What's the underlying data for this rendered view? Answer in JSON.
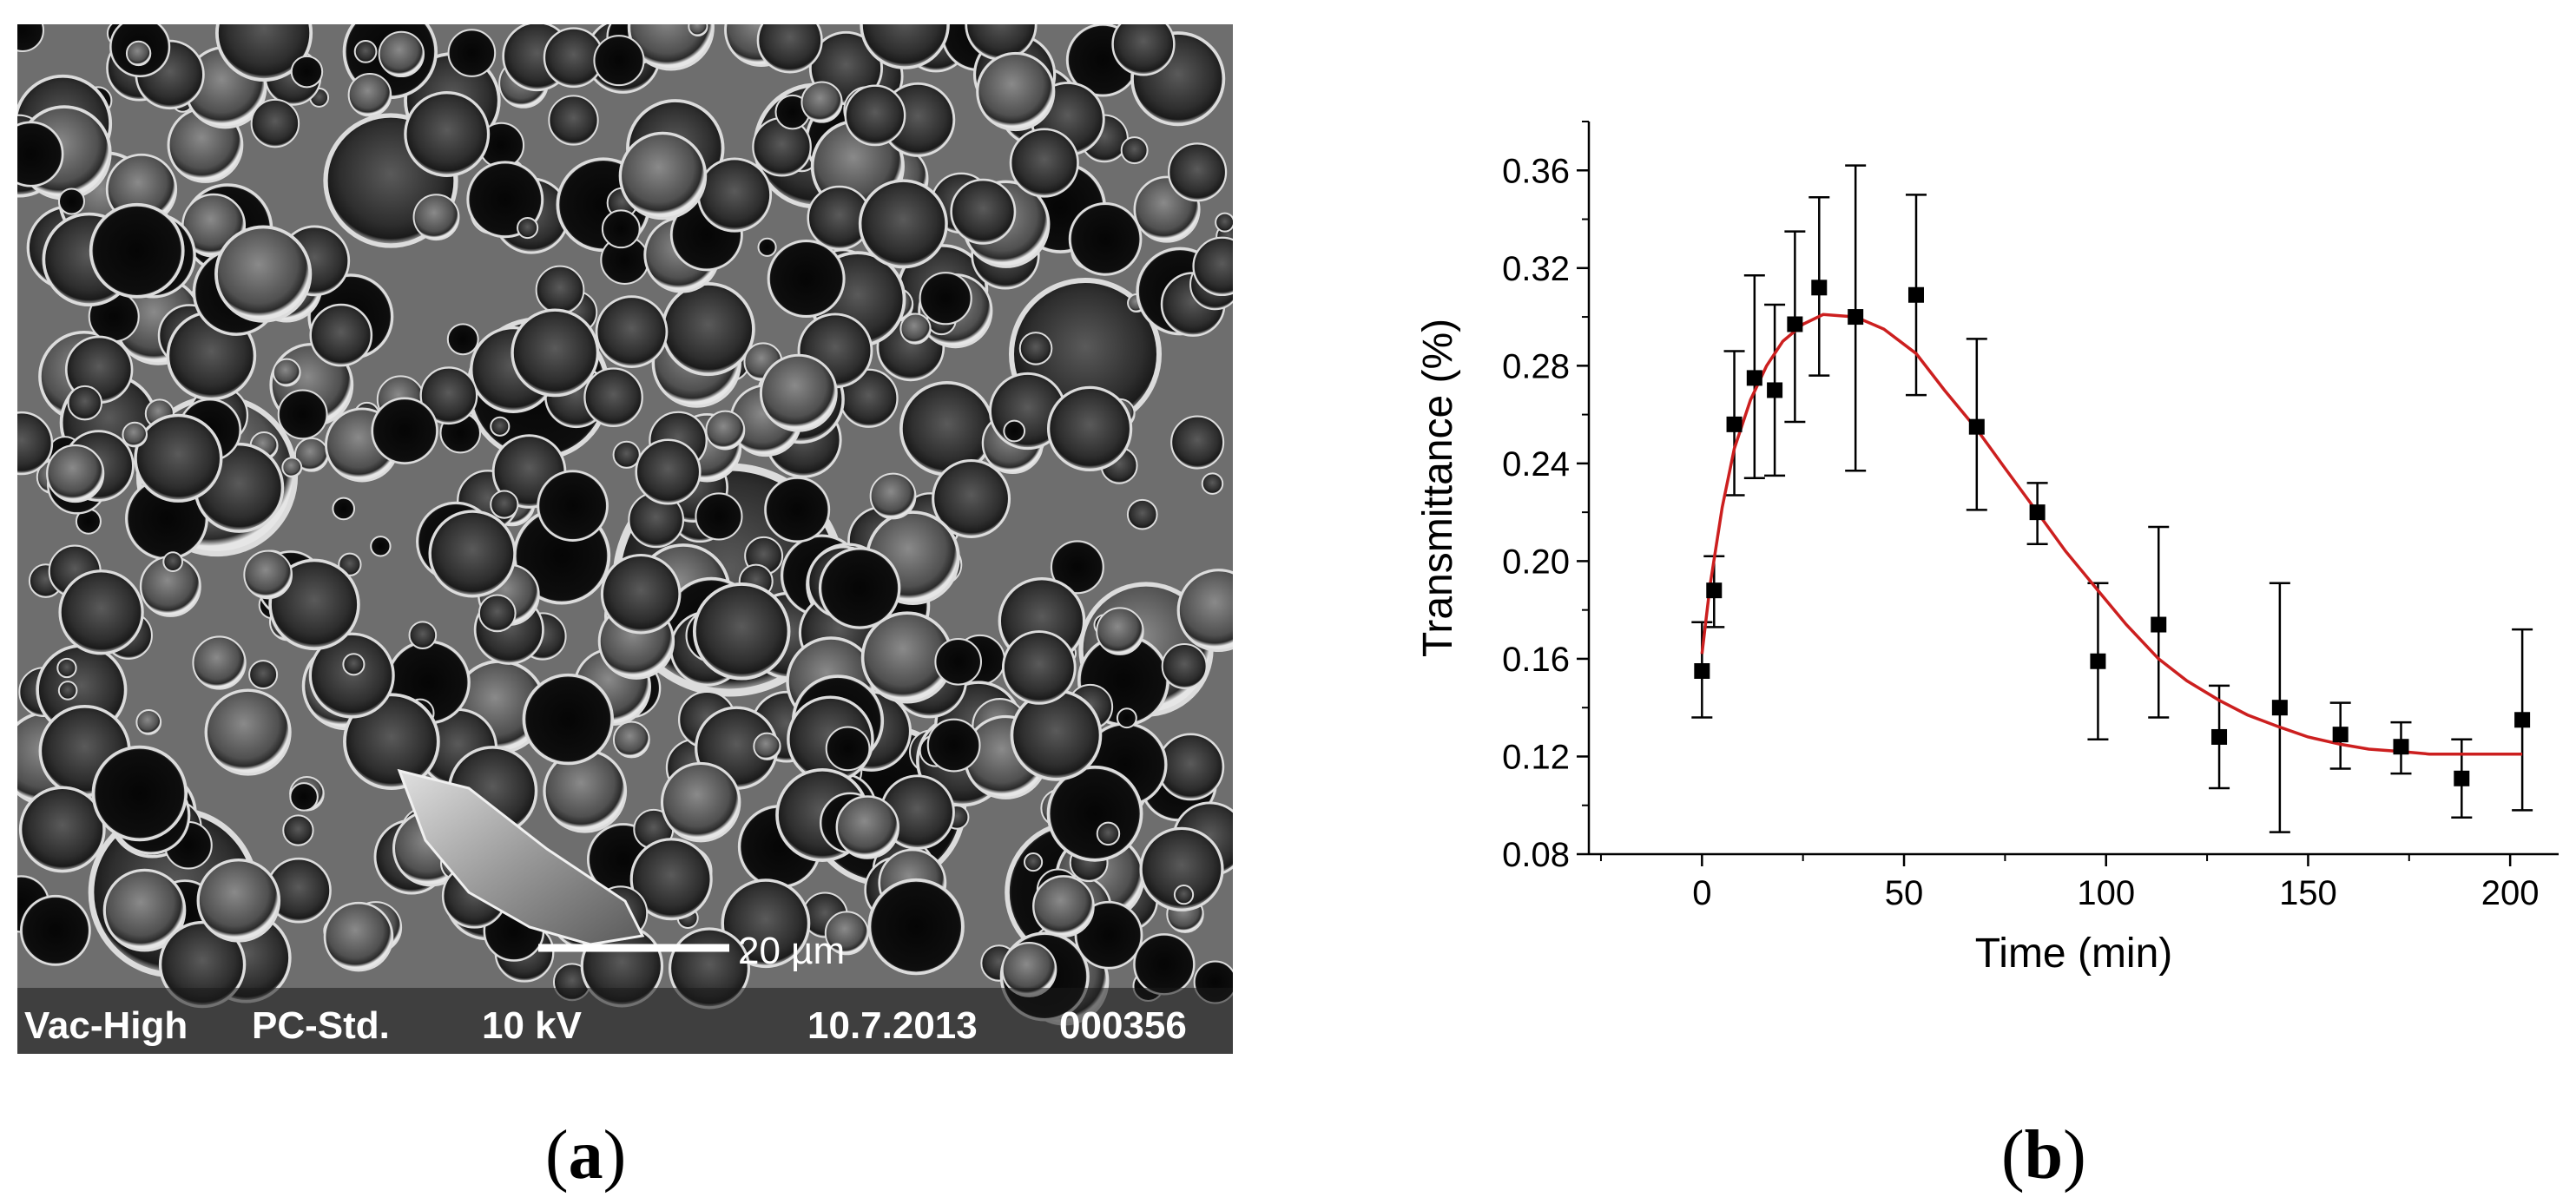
{
  "figure": {
    "panel_a_label": "a",
    "panel_b_label": "b"
  },
  "sem_image": {
    "scale_bar_label": "20 µm",
    "info_bar": {
      "vacuum": "Vac-High",
      "mode": "PC-Std.",
      "voltage": "10 kV",
      "date": "10.7.2013",
      "image_number": "000356"
    }
  },
  "chart_data": {
    "type": "scatter",
    "xlabel": "Time (min)",
    "ylabel": "Transmittance (%)",
    "xlim": [
      -28,
      212
    ],
    "ylim": [
      0.08,
      0.38
    ],
    "x_ticks": [
      0,
      50,
      100,
      150,
      200
    ],
    "y_ticks": [
      0.08,
      0.12,
      0.16,
      0.2,
      0.24,
      0.28,
      0.32,
      0.36
    ],
    "x_tick_labels": [
      "0",
      "50",
      "100",
      "150",
      "200"
    ],
    "y_tick_labels": [
      "0.08",
      "0.12",
      "0.16",
      "0.20",
      "0.24",
      "0.28",
      "0.32",
      "0.36"
    ],
    "grid": false,
    "series": [
      {
        "marker": "square",
        "color": "#000000",
        "points": [
          {
            "x": 0,
            "y": 0.155,
            "err_low": 0.136,
            "err_high": 0.175
          },
          {
            "x": 3,
            "y": 0.188,
            "err_low": 0.173,
            "err_high": 0.202
          },
          {
            "x": 8,
            "y": 0.256,
            "err_low": 0.227,
            "err_high": 0.286
          },
          {
            "x": 13,
            "y": 0.275,
            "err_low": 0.234,
            "err_high": 0.317
          },
          {
            "x": 18,
            "y": 0.27,
            "err_low": 0.235,
            "err_high": 0.305
          },
          {
            "x": 23,
            "y": 0.297,
            "err_low": 0.257,
            "err_high": 0.335
          },
          {
            "x": 29,
            "y": 0.312,
            "err_low": 0.276,
            "err_high": 0.349
          },
          {
            "x": 38,
            "y": 0.3,
            "err_low": 0.237,
            "err_high": 0.362
          },
          {
            "x": 53,
            "y": 0.309,
            "err_low": 0.268,
            "err_high": 0.35
          },
          {
            "x": 68,
            "y": 0.255,
            "err_low": 0.221,
            "err_high": 0.291
          },
          {
            "x": 83,
            "y": 0.22,
            "err_low": 0.207,
            "err_high": 0.232
          },
          {
            "x": 98,
            "y": 0.159,
            "err_low": 0.127,
            "err_high": 0.191
          },
          {
            "x": 113,
            "y": 0.174,
            "err_low": 0.136,
            "err_high": 0.214
          },
          {
            "x": 128,
            "y": 0.128,
            "err_low": 0.107,
            "err_high": 0.149
          },
          {
            "x": 143,
            "y": 0.14,
            "err_low": 0.089,
            "err_high": 0.191
          },
          {
            "x": 158,
            "y": 0.129,
            "err_low": 0.115,
            "err_high": 0.142
          },
          {
            "x": 173,
            "y": 0.124,
            "err_low": 0.113,
            "err_high": 0.134
          },
          {
            "x": 188,
            "y": 0.111,
            "err_low": 0.095,
            "err_high": 0.127
          },
          {
            "x": 203,
            "y": 0.135,
            "err_low": 0.098,
            "err_high": 0.172
          }
        ]
      }
    ],
    "fit_curve": {
      "color": "#cc1f1f",
      "points": [
        {
          "x": 0,
          "y": 0.162
        },
        {
          "x": 2,
          "y": 0.19
        },
        {
          "x": 5,
          "y": 0.222
        },
        {
          "x": 8,
          "y": 0.246
        },
        {
          "x": 12,
          "y": 0.266
        },
        {
          "x": 16,
          "y": 0.28
        },
        {
          "x": 20,
          "y": 0.29
        },
        {
          "x": 25,
          "y": 0.297
        },
        {
          "x": 30,
          "y": 0.301
        },
        {
          "x": 38,
          "y": 0.3
        },
        {
          "x": 45,
          "y": 0.295
        },
        {
          "x": 53,
          "y": 0.285
        },
        {
          "x": 60,
          "y": 0.27
        },
        {
          "x": 68,
          "y": 0.254
        },
        {
          "x": 75,
          "y": 0.238
        },
        {
          "x": 83,
          "y": 0.22
        },
        {
          "x": 90,
          "y": 0.204
        },
        {
          "x": 98,
          "y": 0.188
        },
        {
          "x": 105,
          "y": 0.174
        },
        {
          "x": 113,
          "y": 0.16
        },
        {
          "x": 120,
          "y": 0.151
        },
        {
          "x": 128,
          "y": 0.143
        },
        {
          "x": 135,
          "y": 0.137
        },
        {
          "x": 143,
          "y": 0.132
        },
        {
          "x": 150,
          "y": 0.128
        },
        {
          "x": 158,
          "y": 0.125
        },
        {
          "x": 165,
          "y": 0.123
        },
        {
          "x": 173,
          "y": 0.122
        },
        {
          "x": 180,
          "y": 0.121
        },
        {
          "x": 188,
          "y": 0.121
        },
        {
          "x": 195,
          "y": 0.121
        },
        {
          "x": 203,
          "y": 0.121
        }
      ]
    }
  }
}
